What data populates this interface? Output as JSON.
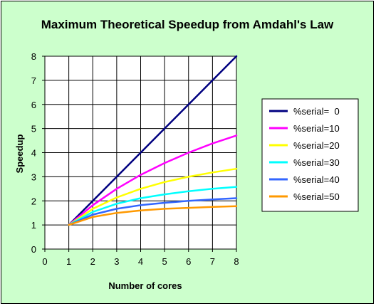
{
  "chart_data": {
    "type": "line",
    "title": "Maximum Theoretical Speedup from Amdahl's Law",
    "xlabel": "Number of cores",
    "ylabel": "Speedup",
    "xlim": [
      0,
      8
    ],
    "ylim": [
      0,
      8
    ],
    "x_ticks": [
      "0",
      "1",
      "2",
      "3",
      "4",
      "5",
      "6",
      "7",
      "8"
    ],
    "y_ticks": [
      "0",
      "1",
      "2",
      "3",
      "4",
      "5",
      "6",
      "7",
      "8"
    ],
    "grid": true,
    "legend_position": "right",
    "x": [
      1,
      2,
      3,
      4,
      5,
      6,
      7,
      8
    ],
    "series": [
      {
        "name": "%serial=  0",
        "color": "#000080",
        "values": [
          1,
          2,
          3,
          4,
          5,
          6,
          7,
          8
        ]
      },
      {
        "name": "%serial=10",
        "color": "#ff00ff",
        "values": [
          1,
          1.82,
          2.5,
          3.08,
          3.57,
          4.0,
          4.38,
          4.71
        ]
      },
      {
        "name": "%serial=20",
        "color": "#ffff00",
        "values": [
          1,
          1.67,
          2.14,
          2.5,
          2.78,
          3.0,
          3.18,
          3.33
        ]
      },
      {
        "name": "%serial=30",
        "color": "#00ffff",
        "values": [
          1,
          1.54,
          1.88,
          2.11,
          2.27,
          2.4,
          2.5,
          2.58
        ]
      },
      {
        "name": "%serial=40",
        "color": "#3366ff",
        "values": [
          1,
          1.43,
          1.67,
          1.82,
          1.92,
          2.0,
          2.06,
          2.11
        ]
      },
      {
        "name": "%serial=50",
        "color": "#ff9900",
        "values": [
          1,
          1.33,
          1.5,
          1.6,
          1.67,
          1.71,
          1.75,
          1.78
        ]
      }
    ]
  },
  "colors": {
    "chart_background": "#ccffcc",
    "plot_background": "#ffffff",
    "grid": "#000000"
  }
}
